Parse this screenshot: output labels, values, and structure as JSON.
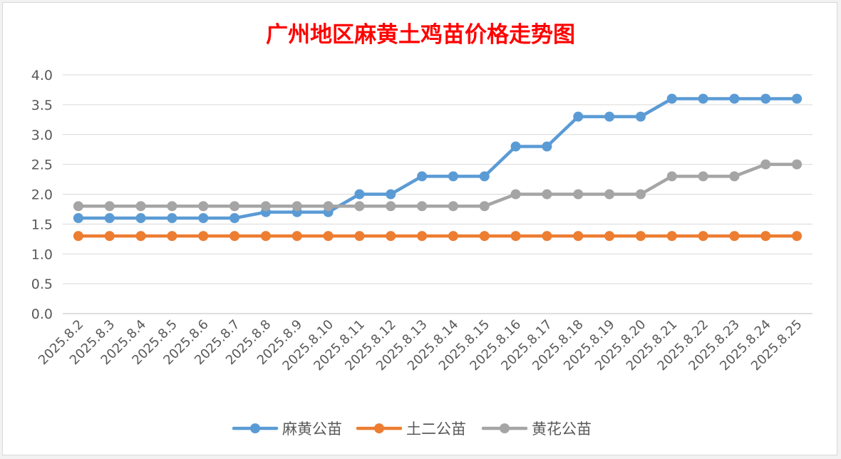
{
  "chart_data": {
    "type": "line",
    "title": "广州地区麻黄土鸡苗价格走势图",
    "xlabel": "",
    "ylabel": "",
    "ylim": [
      0,
      4
    ],
    "y_ticks": [
      "0.0",
      "0.5",
      "1.0",
      "1.5",
      "2.0",
      "2.5",
      "3.0",
      "3.5",
      "4.0"
    ],
    "grid": true,
    "legend_position": "bottom",
    "categories": [
      "2025.8.2",
      "2025.8.3",
      "2025.8.4",
      "2025.8.5",
      "2025.8.6",
      "2025.8.7",
      "2025.8.8",
      "2025.8.9",
      "2025.8.10",
      "2025.8.11",
      "2025.8.12",
      "2025.8.13",
      "2025.8.14",
      "2025.8.15",
      "2025.8.16",
      "2025.8.17",
      "2025.8.18",
      "2025.8.19",
      "2025.8.20",
      "2025.8.21",
      "2025.8.22",
      "2025.8.23",
      "2025.8.24",
      "2025.8.25"
    ],
    "series": [
      {
        "name": "麻黄公苗",
        "color": "#5b9bd5",
        "values": [
          1.6,
          1.6,
          1.6,
          1.6,
          1.6,
          1.6,
          1.7,
          1.7,
          1.7,
          2.0,
          2.0,
          2.3,
          2.3,
          2.3,
          2.8,
          2.8,
          3.3,
          3.3,
          3.3,
          3.6,
          3.6,
          3.6,
          3.6,
          3.6
        ]
      },
      {
        "name": "土二公苗",
        "color": "#ed7d31",
        "values": [
          1.3,
          1.3,
          1.3,
          1.3,
          1.3,
          1.3,
          1.3,
          1.3,
          1.3,
          1.3,
          1.3,
          1.3,
          1.3,
          1.3,
          1.3,
          1.3,
          1.3,
          1.3,
          1.3,
          1.3,
          1.3,
          1.3,
          1.3,
          1.3
        ]
      },
      {
        "name": "黄花公苗",
        "color": "#a5a5a5",
        "values": [
          1.8,
          1.8,
          1.8,
          1.8,
          1.8,
          1.8,
          1.8,
          1.8,
          1.8,
          1.8,
          1.8,
          1.8,
          1.8,
          1.8,
          2.0,
          2.0,
          2.0,
          2.0,
          2.0,
          2.3,
          2.3,
          2.3,
          2.5,
          2.5
        ]
      }
    ],
    "colors": {
      "title": "#ff0000",
      "grid": "#d9d9d9",
      "tick_text": "#595959",
      "axis": "#bfbfbf"
    }
  }
}
